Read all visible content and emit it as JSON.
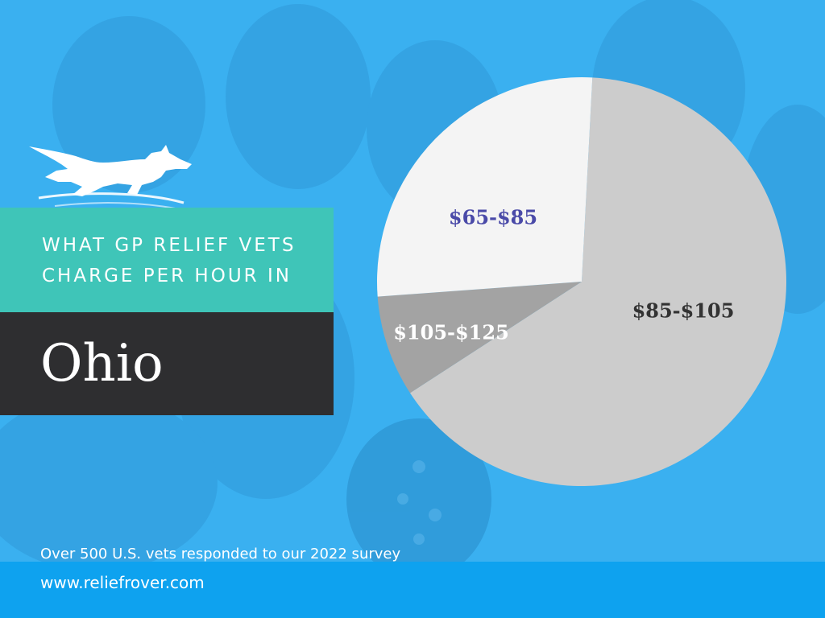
{
  "headline": {
    "line1": "WHAT GP RELIEF VETS",
    "line2": "CHARGE PER HOUR IN",
    "state": "Ohio"
  },
  "footer": {
    "survey_note": "Over 500 U.S. vets responded to our 2022 survey",
    "website": "www.reliefrover.com"
  },
  "colors": {
    "background": "#3ab0f0",
    "teal": "#3fc5b8",
    "dark": "#2e2e30",
    "footer": "#0ea2ef"
  },
  "logo_icon": "running-dog-icon",
  "chart_data": {
    "type": "pie",
    "legend": "none",
    "slices": [
      {
        "label": "$85-$105",
        "value": 65,
        "color": "#cccccc",
        "label_color": "#333333"
      },
      {
        "label": "$105-$125",
        "value": 8,
        "color": "#a3a3a3",
        "label_color": "#ffffff"
      },
      {
        "label": "$65-$85",
        "value": 27,
        "color": "#f4f4f4",
        "label_color": "#4a4aa8"
      }
    ]
  }
}
